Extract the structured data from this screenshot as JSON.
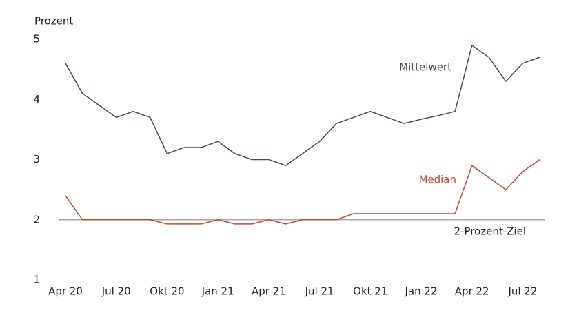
{
  "chart_data": {
    "type": "line",
    "y_label": "Prozent",
    "categories": [
      "Apr 20",
      null,
      null,
      "Jul 20",
      null,
      null,
      "Okt 20",
      null,
      null,
      "Jan 21",
      null,
      null,
      "Apr 21",
      null,
      null,
      "Jul 21",
      null,
      null,
      "Okt 21",
      null,
      null,
      "Jan 22",
      null,
      null,
      "Apr 22",
      null,
      null,
      "Jul 22",
      null
    ],
    "series": [
      {
        "name": "Mittelwert",
        "color": "#3e514b",
        "values": [
          4.6,
          4.1,
          3.9,
          3.7,
          3.8,
          3.7,
          3.1,
          3.2,
          3.2,
          3.3,
          3.1,
          3.0,
          3.0,
          2.9,
          3.1,
          3.3,
          3.6,
          3.7,
          3.8,
          3.7,
          3.6,
          3.67,
          3.73,
          3.8,
          4.9,
          4.7,
          4.3,
          4.6,
          4.7
        ]
      },
      {
        "name": "Median",
        "color": "#c8472b",
        "values": [
          2.4,
          2.0,
          2.0,
          2.0,
          2.0,
          2.0,
          1.93,
          1.93,
          1.93,
          2.0,
          1.93,
          1.93,
          2.0,
          1.93,
          2.0,
          2.0,
          2.0,
          2.1,
          2.1,
          2.1,
          2.1,
          2.1,
          2.1,
          2.1,
          2.9,
          2.7,
          2.5,
          2.8,
          3.0
        ]
      }
    ],
    "reference_line": {
      "value": 2,
      "label": "2-Prozent-Ziel",
      "color": "#a8a8a8"
    },
    "ylim": [
      1,
      5
    ],
    "yticks": [
      1,
      2,
      3,
      4,
      5
    ],
    "grid": false
  }
}
